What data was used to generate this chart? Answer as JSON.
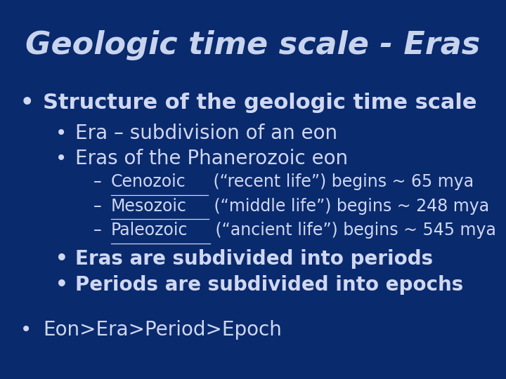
{
  "title": "Geologic time scale - Eras",
  "background_color": "#0a2a6e",
  "text_color": "#d0d8f0",
  "title_color": "#c8d4ee",
  "title_fontsize": 32,
  "bullet1_text": "Structure of the geologic time scale",
  "bullet1_fontsize": 22,
  "sub_bullet1_text": "Era – subdivision of an eon",
  "sub_bullet2_text": "Eras of the Phanerozoic eon",
  "sub_bullet_fontsize": 20,
  "dash1_underline": "Cenozoic",
  "dash1_rest": " (“recent life”) begins ~ 65 mya",
  "dash2_underline": "Mesozoic",
  "dash2_rest": " (“middle life”) begins ~ 248 mya",
  "dash3_underline": "Paleozoic",
  "dash3_rest": " (“ancient life”) begins ~ 545 mya",
  "dash_fontsize": 17,
  "bullet2_text": "Eras are subdivided into periods",
  "bullet3_text": "Periods are subdivided into epochs",
  "bullet4_text": "Eon>Era>Period>Epoch",
  "bullet2_fontsize": 20
}
